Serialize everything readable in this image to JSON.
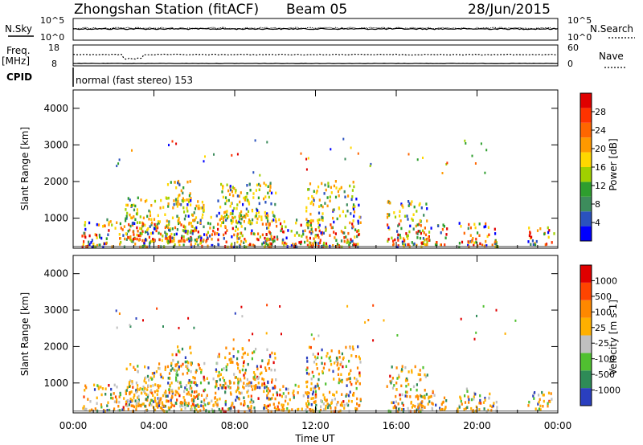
{
  "header": {
    "station": "Zhongshan Station (fitACF)",
    "beam": "Beam 05",
    "date": "28/Jun/2015"
  },
  "top_panels": {
    "nsky_label": "N.Sky",
    "nsky_ticks": [
      "10^5",
      "10^0"
    ],
    "nsearch_label": "N.Search",
    "nsearch_ticks": [
      "10^5",
      "10^0"
    ],
    "freq_label_1": "Freq.",
    "freq_label_2": "[MHz]",
    "freq_ticks": [
      "18",
      "8"
    ],
    "nave_label": "Nave",
    "nave_ticks": [
      "60",
      "0"
    ],
    "cpid_label": "CPID",
    "cpid_value": "normal (fast stereo) 153"
  },
  "chart_data": [
    {
      "type": "heatmap",
      "name": "power",
      "ylabel": "Slant Range [km]",
      "ylim": [
        180,
        4500
      ],
      "yticks": [
        "4000",
        "3000",
        "2000",
        "1000"
      ],
      "colorbar_label": "Power [dB]",
      "colorbar_ticks": [
        "28",
        "24",
        "20",
        "16",
        "12",
        "8",
        "4"
      ],
      "colors": [
        "#0000ff",
        "#2a52be",
        "#3d8c5c",
        "#2e9e2e",
        "#a0d000",
        "#ffd700",
        "#ff9900",
        "#ff6600",
        "#ff3300",
        "#e00000"
      ]
    },
    {
      "type": "heatmap",
      "name": "velocity",
      "ylabel": "Slant Range [km]",
      "ylim": [
        180,
        4500
      ],
      "yticks": [
        "4000",
        "3000",
        "2000",
        "1000"
      ],
      "colorbar_label": "Velocity [m s-1]",
      "colorbar_ticks": [
        "1000",
        "500",
        "100",
        "25",
        "-25",
        "-100",
        "-500",
        "-1000"
      ],
      "colors": [
        "#2a3fbf",
        "#2e8b57",
        "#50c030",
        "#c0c0c0",
        "#ffb000",
        "#ff8800",
        "#ff4400",
        "#e00000"
      ]
    }
  ],
  "xaxis": {
    "xlabel": "Time UT",
    "xticks": [
      "00:00",
      "04:00",
      "08:00",
      "12:00",
      "16:00",
      "20:00",
      "00:00"
    ],
    "xlim_hours": [
      0,
      24
    ]
  },
  "blobs": [
    {
      "t0": 0.4,
      "t1": 5.0,
      "r0": 250,
      "r1": 1000
    },
    {
      "t0": 2.5,
      "t1": 6.5,
      "r0": 400,
      "r1": 1600
    },
    {
      "t0": 4.5,
      "t1": 5.8,
      "r0": 1400,
      "r1": 2050
    },
    {
      "t0": 5.0,
      "t1": 9.8,
      "r0": 250,
      "r1": 1200
    },
    {
      "t0": 7.0,
      "t1": 10.0,
      "r0": 900,
      "r1": 2000
    },
    {
      "t0": 9.5,
      "t1": 12.0,
      "r0": 250,
      "r1": 1000
    },
    {
      "t0": 11.5,
      "t1": 14.2,
      "r0": 250,
      "r1": 2050
    },
    {
      "t0": 15.5,
      "t1": 17.5,
      "r0": 250,
      "r1": 1500
    },
    {
      "t0": 17.0,
      "t1": 18.5,
      "r0": 300,
      "r1": 900
    },
    {
      "t0": 19.0,
      "t1": 21.0,
      "r0": 250,
      "r1": 900
    },
    {
      "t0": 22.5,
      "t1": 23.8,
      "r0": 300,
      "r1": 800
    }
  ]
}
